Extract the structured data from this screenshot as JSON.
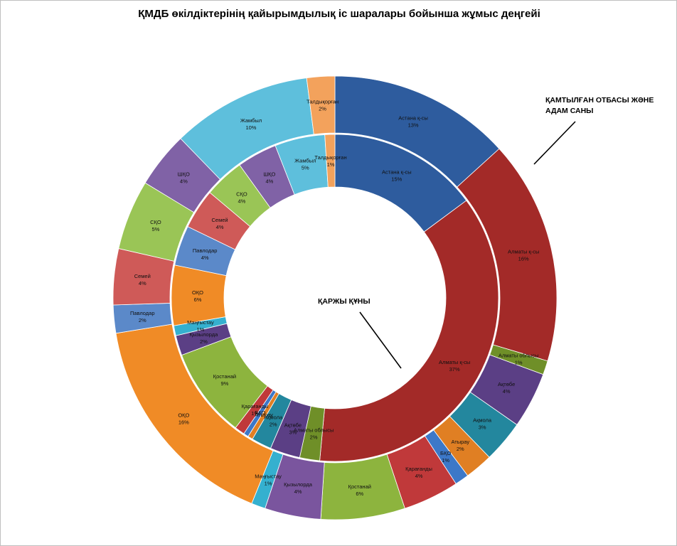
{
  "chart_data": {
    "type": "donut",
    "title": "ҚМДБ өкілдіктерінің қайырымдылық іс шаралары бойынша жұмыс деңгейі",
    "rings": [
      {
        "ring": "outer",
        "annotation": [
          "ҚАМТЫЛҒАН ОТБАСЫ ЖӘНЕ",
          "АДАМ САНЫ"
        ],
        "slices": [
          {
            "label": "Астана қ-сы",
            "value": 13,
            "pct": "13%",
            "color": "#2e5c9e"
          },
          {
            "label": "Алматы қ-сы",
            "value": 16,
            "pct": "16%",
            "color": "#a32a28"
          },
          {
            "label": "Алматы облысы",
            "value": 1,
            "pct": "1%",
            "color": "#6f8f28"
          },
          {
            "label": "Ақтөбе",
            "value": 4,
            "pct": "4%",
            "color": "#5b3f85"
          },
          {
            "label": "Ақмола",
            "value": 3,
            "pct": "3%",
            "color": "#23879e"
          },
          {
            "label": "Атырау",
            "value": 2,
            "pct": "2%",
            "color": "#e07f23"
          },
          {
            "label": "БҚО",
            "value": 1,
            "pct": "1%",
            "color": "#3c78c8"
          },
          {
            "label": "Қарағанды",
            "value": 4,
            "pct": "4%",
            "color": "#c0393a"
          },
          {
            "label": "Қостанай",
            "value": 6,
            "pct": "6%",
            "color": "#8db43e"
          },
          {
            "label": "Қызылорда",
            "value": 4,
            "pct": "4%",
            "color": "#7a559e"
          },
          {
            "label": "Маңғыстау",
            "value": 1,
            "pct": "1%",
            "color": "#35b0cf"
          },
          {
            "label": "ОҚО",
            "value": 16,
            "pct": "16%",
            "color": "#f08b26"
          },
          {
            "label": "Павлодар",
            "value": 2,
            "pct": "2%",
            "color": "#5b89c9"
          },
          {
            "label": "Семей",
            "value": 4,
            "pct": "4%",
            "color": "#cf5a58"
          },
          {
            "label": "СҚО",
            "value": 5,
            "pct": "5%",
            "color": "#9ac556"
          },
          {
            "label": "ШҚО",
            "value": 4,
            "pct": "4%",
            "color": "#8062a6"
          },
          {
            "label": "Жамбыл",
            "value": 10,
            "pct": "10%",
            "color": "#5ebfdc"
          },
          {
            "label": "Талдықорған",
            "value": 2,
            "pct": "2%",
            "color": "#f3a25c"
          }
        ]
      },
      {
        "ring": "inner",
        "annotation": [
          "ҚАРЖЫ ҚҰНЫ"
        ],
        "slices": [
          {
            "label": "Астана қ-сы",
            "value": 15,
            "pct": "15%",
            "color": "#2e5c9e"
          },
          {
            "label": "Алматы қ-сы",
            "value": 37,
            "pct": "37%",
            "color": "#a32a28"
          },
          {
            "label": "Алматы облысы",
            "value": 2,
            "pct": "2%",
            "color": "#6f8f28"
          },
          {
            "label": "Ақтөбе",
            "value": 3,
            "pct": "3%",
            "color": "#5b3f85"
          },
          {
            "label": "Ақмола",
            "value": 2,
            "pct": "2%",
            "color": "#23879e"
          },
          {
            "label": "Атырау",
            "value": 0.5,
            "pct": "",
            "color": "#e07f23"
          },
          {
            "label": "БҚО",
            "value": 0.5,
            "pct": "",
            "color": "#3c78c8"
          },
          {
            "label": "Қарағанды",
            "value": 1,
            "pct": "1%",
            "color": "#c0393a"
          },
          {
            "label": "Қостанай",
            "value": 9,
            "pct": "9%",
            "color": "#8db43e"
          },
          {
            "label": "Қызылорда",
            "value": 2,
            "pct": "2%",
            "color": "#5b3f85"
          },
          {
            "label": "Маңғыстау",
            "value": 1,
            "pct": "1%",
            "color": "#35b0cf"
          },
          {
            "label": "ОҚО",
            "value": 6,
            "pct": "6%",
            "color": "#f08b26"
          },
          {
            "label": "Павлодар",
            "value": 4,
            "pct": "4%",
            "color": "#5b89c9"
          },
          {
            "label": "Семей",
            "value": 4,
            "pct": "4%",
            "color": "#cf5a58"
          },
          {
            "label": "СҚО",
            "value": 4,
            "pct": "4%",
            "color": "#9ac556"
          },
          {
            "label": "ШҚО",
            "value": 4,
            "pct": "4%",
            "color": "#8062a6"
          },
          {
            "label": "Жамбыл",
            "value": 5,
            "pct": "5%",
            "color": "#5ebfdc"
          },
          {
            "label": "Талдықорған",
            "value": 1,
            "pct": "1%",
            "color": "#f3a25c"
          }
        ]
      }
    ],
    "legend": "none",
    "grid": false
  }
}
